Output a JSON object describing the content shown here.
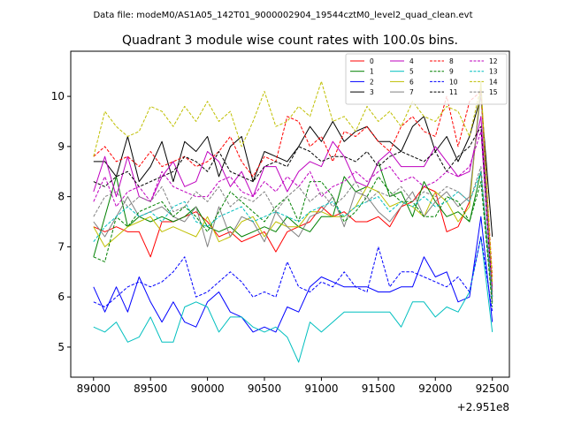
{
  "chart_data": {
    "type": "line",
    "suptitle": "Data file: modeM0/AS1A05_142T01_9000002904_19544cztM0_level2_quad_clean.evt",
    "title": "Quadrant 3 module wise count rates with 100.0s bins.",
    "xlabel": "",
    "ylabel": "",
    "x_offset_label": "+2.951e8",
    "xlim": [
      88800,
      92650
    ],
    "ylim": [
      4.4,
      10.9
    ],
    "xticks": [
      89000,
      89500,
      90000,
      90500,
      91000,
      91500,
      92000,
      92500
    ],
    "xtick_labels": [
      "89000",
      "89500",
      "90000",
      "90500",
      "91000",
      "91500",
      "92000",
      "92500"
    ],
    "yticks": [
      5,
      6,
      7,
      8,
      9,
      10
    ],
    "ytick_labels": [
      "5",
      "6",
      "7",
      "8",
      "9",
      "10"
    ],
    "x": [
      89000,
      89100,
      89200,
      89300,
      89400,
      89500,
      89600,
      89700,
      89800,
      89900,
      90000,
      90100,
      90200,
      90300,
      90400,
      90500,
      90600,
      90700,
      90800,
      90900,
      91000,
      91100,
      91200,
      91300,
      91400,
      91500,
      91600,
      91700,
      91800,
      91900,
      92000,
      92100,
      92200,
      92300,
      92400,
      92500
    ],
    "legend_position": "top-right",
    "series": [
      {
        "name": "0",
        "color": "#ff0000",
        "dash": "solid",
        "values": [
          7.4,
          7.3,
          7.4,
          7.3,
          7.3,
          6.8,
          7.5,
          7.5,
          7.6,
          7.7,
          7.5,
          7.2,
          7.3,
          7.1,
          7.2,
          7.3,
          6.9,
          7.3,
          7.4,
          7.5,
          7.8,
          7.6,
          7.7,
          7.5,
          7.5,
          7.6,
          7.4,
          7.8,
          7.9,
          8.2,
          8.1,
          7.3,
          7.4,
          7.9,
          10.2,
          6.0
        ]
      },
      {
        "name": "1",
        "color": "#008000",
        "dash": "solid",
        "values": [
          6.8,
          7.6,
          8.4,
          7.4,
          7.6,
          7.5,
          7.6,
          7.5,
          7.6,
          7.8,
          7.4,
          7.3,
          7.4,
          7.2,
          7.3,
          7.4,
          7.3,
          7.6,
          7.4,
          7.3,
          7.6,
          7.6,
          8.4,
          8.1,
          8.2,
          8.7,
          8.0,
          8.1,
          7.6,
          8.3,
          7.9,
          7.6,
          7.7,
          7.5,
          8.5,
          5.9
        ]
      },
      {
        "name": "2",
        "color": "#0000ff",
        "dash": "solid",
        "values": [
          6.2,
          5.7,
          6.2,
          5.7,
          6.4,
          5.9,
          5.5,
          5.9,
          5.5,
          5.4,
          5.9,
          6.1,
          5.7,
          5.6,
          5.3,
          5.4,
          5.3,
          5.8,
          5.7,
          6.2,
          6.4,
          6.3,
          6.2,
          6.2,
          6.2,
          6.1,
          6.1,
          6.2,
          6.2,
          6.8,
          6.4,
          6.5,
          5.9,
          6.0,
          7.6,
          5.5
        ]
      },
      {
        "name": "3",
        "color": "#000000",
        "dash": "solid",
        "values": [
          8.7,
          8.7,
          8.4,
          9.2,
          8.3,
          8.6,
          9.1,
          8.3,
          9.1,
          8.9,
          9.2,
          8.4,
          9.0,
          9.2,
          8.3,
          8.9,
          8.8,
          8.7,
          9.0,
          9.4,
          9.1,
          9.5,
          9.1,
          9.3,
          9.4,
          9.1,
          9.1,
          8.9,
          9.4,
          9.6,
          8.9,
          9.2,
          8.7,
          9.2,
          10.0,
          7.2
        ]
      },
      {
        "name": "4",
        "color": "#bf00bf",
        "dash": "solid",
        "values": [
          8.1,
          8.8,
          8.0,
          8.8,
          8.0,
          7.9,
          8.4,
          8.7,
          8.2,
          8.3,
          8.9,
          8.7,
          8.2,
          8.5,
          8.0,
          8.6,
          8.6,
          8.1,
          8.5,
          8.7,
          8.6,
          9.1,
          8.8,
          8.3,
          8.2,
          8.7,
          8.9,
          8.6,
          8.6,
          8.6,
          9.0,
          8.7,
          8.4,
          8.5,
          9.6,
          6.2
        ]
      },
      {
        "name": "5",
        "color": "#00bfbf",
        "dash": "solid",
        "values": [
          5.4,
          5.3,
          5.5,
          5.1,
          5.2,
          5.6,
          5.1,
          5.1,
          5.8,
          5.9,
          5.8,
          5.3,
          5.6,
          5.6,
          5.4,
          5.3,
          5.4,
          5.2,
          4.7,
          5.5,
          5.3,
          5.5,
          5.7,
          5.7,
          5.7,
          5.7,
          5.7,
          5.4,
          5.9,
          5.9,
          5.6,
          5.8,
          5.7,
          6.1,
          7.2,
          5.3
        ]
      },
      {
        "name": "6",
        "color": "#bfbf00",
        "dash": "solid",
        "values": [
          7.4,
          7.0,
          7.2,
          7.4,
          7.5,
          7.6,
          7.3,
          7.4,
          7.3,
          7.2,
          7.6,
          7.1,
          7.2,
          7.5,
          7.6,
          7.2,
          7.5,
          7.4,
          7.4,
          7.7,
          7.7,
          7.6,
          7.6,
          7.8,
          8.2,
          8.1,
          7.8,
          7.9,
          7.8,
          7.6,
          8.1,
          7.9,
          7.5,
          7.8,
          10.3,
          6.1
        ]
      },
      {
        "name": "7",
        "color": "#808080",
        "dash": "solid",
        "values": [
          7.5,
          7.2,
          7.6,
          8.0,
          7.6,
          7.7,
          7.8,
          7.6,
          7.5,
          7.8,
          7.0,
          7.8,
          7.2,
          7.6,
          7.5,
          7.1,
          7.7,
          7.4,
          7.2,
          7.6,
          7.7,
          8.0,
          7.4,
          8.1,
          8.0,
          7.7,
          7.5,
          7.8,
          8.1,
          7.6,
          7.9,
          8.1,
          7.8,
          8.0,
          10.1,
          5.9
        ]
      },
      {
        "name": "8",
        "color": "#ff0000",
        "dash": "dashed",
        "values": [
          8.8,
          9.0,
          8.7,
          8.8,
          8.6,
          8.9,
          8.6,
          8.7,
          8.8,
          8.6,
          8.7,
          8.9,
          9.2,
          8.7,
          8.4,
          8.8,
          8.7,
          9.6,
          9.5,
          9.0,
          9.2,
          8.7,
          9.3,
          9.2,
          9.4,
          9.1,
          8.9,
          9.4,
          9.6,
          9.3,
          9.2,
          10.0,
          9.0,
          9.9,
          10.1,
          6.4
        ]
      },
      {
        "name": "9",
        "color": "#008000",
        "dash": "dashed",
        "values": [
          6.8,
          6.7,
          7.6,
          7.4,
          7.7,
          7.8,
          7.9,
          7.6,
          7.8,
          7.6,
          7.3,
          7.7,
          8.1,
          7.9,
          7.7,
          7.5,
          7.8,
          8.0,
          7.5,
          8.3,
          8.3,
          8.0,
          7.5,
          7.7,
          8.0,
          8.4,
          8.1,
          7.9,
          7.9,
          7.6,
          7.6,
          8.0,
          7.9,
          7.5,
          8.3,
          5.8
        ]
      },
      {
        "name": "10",
        "color": "#0000ff",
        "dash": "dashed",
        "values": [
          5.9,
          5.8,
          6.0,
          6.2,
          6.3,
          6.2,
          6.3,
          6.5,
          6.8,
          6.0,
          6.1,
          6.3,
          6.5,
          6.3,
          6.0,
          6.1,
          6.0,
          6.7,
          6.2,
          6.1,
          6.3,
          6.2,
          6.5,
          6.2,
          6.1,
          7.0,
          6.2,
          6.5,
          6.5,
          6.4,
          6.3,
          6.2,
          6.4,
          6.1,
          7.2,
          5.7
        ]
      },
      {
        "name": "11",
        "color": "#000000",
        "dash": "dashed",
        "values": [
          8.3,
          8.2,
          8.4,
          8.5,
          8.2,
          8.3,
          8.4,
          8.5,
          8.8,
          8.7,
          8.5,
          8.9,
          8.5,
          8.4,
          8.3,
          8.6,
          8.7,
          8.6,
          9.0,
          8.9,
          8.7,
          8.8,
          8.8,
          8.7,
          8.9,
          8.6,
          8.8,
          8.9,
          8.8,
          8.7,
          8.9,
          8.5,
          8.8,
          9.0,
          9.4,
          6.0
        ]
      },
      {
        "name": "12",
        "color": "#bf00bf",
        "dash": "dashed",
        "values": [
          7.9,
          8.4,
          7.8,
          8.1,
          8.2,
          7.9,
          8.5,
          8.2,
          8.1,
          8.0,
          8.0,
          8.3,
          8.4,
          8.1,
          8.0,
          8.3,
          8.1,
          8.4,
          8.2,
          8.5,
          8.0,
          8.2,
          8.3,
          8.5,
          8.3,
          8.5,
          8.6,
          8.3,
          8.4,
          8.2,
          8.3,
          8.5,
          8.4,
          8.6,
          9.3,
          6.1
        ]
      },
      {
        "name": "13",
        "color": "#00bfbf",
        "dash": "dashed",
        "values": [
          7.1,
          7.4,
          7.6,
          7.8,
          7.6,
          7.7,
          7.5,
          7.8,
          7.9,
          7.5,
          7.4,
          7.6,
          7.7,
          7.8,
          7.5,
          7.6,
          7.7,
          7.6,
          7.5,
          7.7,
          7.8,
          7.9,
          7.6,
          7.8,
          7.9,
          8.0,
          7.7,
          7.9,
          7.8,
          8.0,
          7.8,
          7.9,
          8.1,
          7.9,
          8.5,
          6.0
        ]
      },
      {
        "name": "14",
        "color": "#bfbf00",
        "dash": "dashed",
        "values": [
          8.8,
          9.7,
          9.4,
          9.2,
          9.3,
          9.8,
          9.7,
          9.4,
          9.8,
          9.5,
          9.9,
          9.5,
          9.7,
          9.0,
          9.5,
          10.1,
          9.4,
          9.5,
          9.8,
          9.6,
          10.3,
          9.5,
          9.6,
          9.3,
          9.8,
          9.5,
          9.7,
          9.4,
          9.9,
          9.6,
          9.5,
          9.8,
          9.7,
          9.2,
          10.2,
          6.3
        ]
      },
      {
        "name": "15",
        "color": "#808080",
        "dash": "dashed",
        "values": [
          7.6,
          8.0,
          8.1,
          7.8,
          8.0,
          7.9,
          8.2,
          7.7,
          7.8,
          8.1,
          7.9,
          8.2,
          7.8,
          8.0,
          7.9,
          8.1,
          7.7,
          8.0,
          8.2,
          7.9,
          8.1,
          7.8,
          8.0,
          8.3,
          7.9,
          8.1,
          8.0,
          8.2,
          7.9,
          8.1,
          8.0,
          8.2,
          8.1,
          7.9,
          8.6,
          6.0
        ]
      }
    ]
  }
}
